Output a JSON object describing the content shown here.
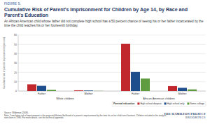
{
  "chart_data": {
    "type": "bar",
    "figure_label": "FIGURE 5.",
    "title": "Cumulative Risk of Parent's Imprisonment for Children by Age 14, by Race and Parent's Education",
    "subtitle": "An African American child whose father did not complete high school has a 50 percent chance of seeing his or her father incarcerated by the time the child reaches his or her fourteenth birthday.",
    "y_label": "Cumulative risk of parent's imprisonment (percent)",
    "categories": [
      "Father",
      "Mother",
      "Father",
      "Mother"
    ],
    "category_groups": [
      "White children",
      "White children",
      "African American children",
      "African American children"
    ],
    "series": [
      {
        "name": "High school dropout",
        "color": "#c0282d",
        "values": [
          7.2,
          0.8,
          50.5,
          5.3
        ]
      },
      {
        "name": "High school only",
        "color": "#1f4e8c",
        "values": [
          5.6,
          0.6,
          20.4,
          3.5
        ]
      },
      {
        "name": "Some college",
        "color": "#5e9c3f",
        "values": [
          1.4,
          0.2,
          13.4,
          1.8
        ]
      }
    ],
    "legend": "bottom",
    "legend_title": "Parental education",
    "ylim": [
      0,
      60
    ],
    "yticks": [
      0,
      10,
      20,
      30,
      40,
      50,
      60
    ],
    "grid": true,
    "source": "Source: Wildeman (2009).",
    "note": "Note: Cumulative risk of imprisonment is the projected lifetime likelihood of a parent's imprisonment by the time his or her child turns fourteen. Children included in the analysis were born in 1990. For more details, see the technical appendix.",
    "branding": [
      "THE HAMILTON PROJECT",
      "BROOKINGS"
    ]
  }
}
